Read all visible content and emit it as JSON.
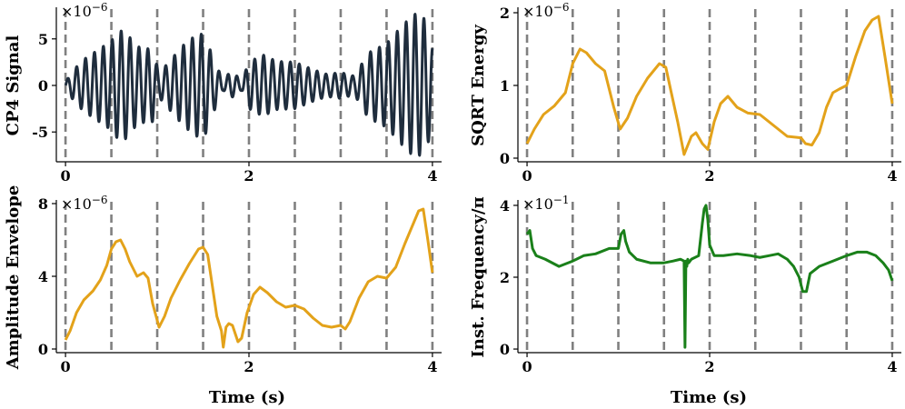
{
  "figure": {
    "shared_xlabel": "Time (s)"
  },
  "chart_data": [
    {
      "type": "line",
      "id": "signal",
      "ylabel": "CP4 Signal",
      "multiplier": "×10",
      "exponent": "−6",
      "xlim": [
        -0.1,
        4.1
      ],
      "ylim": [
        -8.2,
        8.2
      ],
      "xticks": [
        0,
        2,
        4
      ],
      "yticks": [
        -5,
        0,
        5
      ],
      "ytick_labels": [
        "-5",
        "0",
        "5"
      ],
      "vlines": [
        0,
        0.5,
        1,
        1.5,
        2,
        2.5,
        3,
        3.5,
        4
      ],
      "series": [
        {
          "name": "CP4 Signal",
          "color": "#1f2d3d",
          "carrier_freq_hz": 10.3,
          "envelope_x": [
            0,
            0.1,
            0.2,
            0.35,
            0.5,
            0.58,
            0.65,
            0.78,
            0.85,
            0.95,
            1.02,
            1.15,
            1.3,
            1.45,
            1.52,
            1.6,
            1.72,
            1.78,
            1.85,
            1.92,
            2.0,
            2.15,
            2.3,
            2.5,
            2.7,
            2.85,
            3.0,
            3.15,
            3.3,
            3.5,
            3.65,
            3.8,
            3.9,
            3.98,
            4.0
          ],
          "envelope_y": [
            0.4,
            1.8,
            2.8,
            3.8,
            4.8,
            5.9,
            5.8,
            4.2,
            4.0,
            3.9,
            1.3,
            2.8,
            4.5,
            5.6,
            5.4,
            3.2,
            0.5,
            1.3,
            1.2,
            0.5,
            2.5,
            3.3,
            2.6,
            2.5,
            1.7,
            1.2,
            1.4,
            1.0,
            3.5,
            4.5,
            6.2,
            7.7,
            7.4,
            5.5,
            4.2
          ]
        }
      ]
    },
    {
      "type": "line",
      "id": "sqrt-energy",
      "ylabel": "SQRT Energy",
      "multiplier": "×10",
      "exponent": "−6",
      "xlim": [
        -0.1,
        4.1
      ],
      "ylim": [
        -0.05,
        2.05
      ],
      "xticks": [
        0,
        2,
        4
      ],
      "yticks": [
        0,
        1,
        2
      ],
      "ytick_labels": [
        "0",
        "1",
        "2"
      ],
      "vlines": [
        0,
        0.5,
        1,
        1.5,
        2,
        2.5,
        3,
        3.5,
        4
      ],
      "series": [
        {
          "name": "SQRT Energy",
          "color": "#e3a21a",
          "x": [
            0.0,
            0.08,
            0.18,
            0.3,
            0.42,
            0.5,
            0.58,
            0.65,
            0.75,
            0.85,
            0.95,
            1.02,
            1.1,
            1.2,
            1.32,
            1.45,
            1.52,
            1.58,
            1.65,
            1.72,
            1.8,
            1.85,
            1.92,
            1.98,
            2.05,
            2.12,
            2.2,
            2.3,
            2.42,
            2.55,
            2.7,
            2.85,
            3.0,
            3.05,
            3.12,
            3.2,
            3.28,
            3.35,
            3.42,
            3.5,
            3.6,
            3.7,
            3.78,
            3.85,
            3.92,
            4.0
          ],
          "y": [
            0.2,
            0.4,
            0.6,
            0.72,
            0.9,
            1.3,
            1.5,
            1.45,
            1.3,
            1.2,
            0.7,
            0.4,
            0.55,
            0.85,
            1.1,
            1.3,
            1.25,
            0.9,
            0.5,
            0.05,
            0.3,
            0.35,
            0.2,
            0.12,
            0.5,
            0.75,
            0.85,
            0.7,
            0.62,
            0.6,
            0.45,
            0.3,
            0.28,
            0.2,
            0.18,
            0.35,
            0.7,
            0.9,
            0.95,
            1.0,
            1.4,
            1.75,
            1.9,
            1.95,
            1.4,
            0.75
          ]
        }
      ]
    },
    {
      "type": "line",
      "id": "amplitude-envelope",
      "ylabel": "Amplitude Envelope",
      "multiplier": "×10",
      "exponent": "−6",
      "xlim": [
        -0.1,
        4.1
      ],
      "ylim": [
        -0.2,
        8.1
      ],
      "xticks": [
        0,
        2,
        4
      ],
      "yticks": [
        0,
        4,
        8
      ],
      "ytick_labels": [
        "0",
        "4",
        "8"
      ],
      "vlines": [
        0,
        0.5,
        1,
        1.5,
        2,
        2.5,
        3,
        3.5,
        4
      ],
      "series": [
        {
          "name": "Amplitude Envelope",
          "color": "#e3a21a",
          "x": [
            0.0,
            0.05,
            0.12,
            0.2,
            0.3,
            0.38,
            0.45,
            0.5,
            0.55,
            0.6,
            0.65,
            0.7,
            0.78,
            0.85,
            0.9,
            0.95,
            1.02,
            1.08,
            1.15,
            1.25,
            1.35,
            1.45,
            1.5,
            1.55,
            1.6,
            1.65,
            1.7,
            1.72,
            1.75,
            1.78,
            1.82,
            1.88,
            1.92,
            1.98,
            2.05,
            2.12,
            2.2,
            2.3,
            2.4,
            2.5,
            2.6,
            2.7,
            2.8,
            2.9,
            3.0,
            3.05,
            3.1,
            3.2,
            3.3,
            3.4,
            3.5,
            3.6,
            3.7,
            3.8,
            3.85,
            3.9,
            3.95,
            4.0
          ],
          "y": [
            0.5,
            1.0,
            2.0,
            2.7,
            3.2,
            3.8,
            4.6,
            5.5,
            5.9,
            6.0,
            5.5,
            4.8,
            4.0,
            4.2,
            3.9,
            2.5,
            1.2,
            1.8,
            2.8,
            3.8,
            4.7,
            5.5,
            5.6,
            5.2,
            3.5,
            1.8,
            1.0,
            0.1,
            1.2,
            1.4,
            1.3,
            0.4,
            0.6,
            2.0,
            3.0,
            3.4,
            3.1,
            2.6,
            2.3,
            2.4,
            2.2,
            1.7,
            1.3,
            1.2,
            1.3,
            1.1,
            1.5,
            2.8,
            3.7,
            4.0,
            3.9,
            4.5,
            5.8,
            7.0,
            7.6,
            7.7,
            6.0,
            4.2
          ]
        }
      ]
    },
    {
      "type": "line",
      "id": "inst-frequency",
      "ylabel": "Inst. Frequency/π",
      "multiplier": "×10",
      "exponent": "−1",
      "xlim": [
        -0.1,
        4.1
      ],
      "ylim": [
        -0.1,
        4.1
      ],
      "xticks": [
        0,
        2,
        4
      ],
      "yticks": [
        0,
        2,
        4
      ],
      "ytick_labels": [
        "0",
        "2",
        "4"
      ],
      "vlines": [
        0,
        0.5,
        1,
        1.5,
        2,
        2.5,
        3,
        3.5,
        4
      ],
      "series": [
        {
          "name": "Inst. Frequency/π",
          "color": "#1a801a",
          "x": [
            0.0,
            0.03,
            0.06,
            0.1,
            0.2,
            0.35,
            0.5,
            0.62,
            0.75,
            0.9,
            1.0,
            1.03,
            1.06,
            1.08,
            1.12,
            1.2,
            1.35,
            1.5,
            1.6,
            1.68,
            1.72,
            1.73,
            1.74,
            1.75,
            1.76,
            1.77,
            1.8,
            1.88,
            1.92,
            1.94,
            1.96,
            1.98,
            2.0,
            2.05,
            2.15,
            2.3,
            2.45,
            2.55,
            2.65,
            2.75,
            2.85,
            2.92,
            2.98,
            3.02,
            3.06,
            3.1,
            3.2,
            3.35,
            3.5,
            3.62,
            3.72,
            3.82,
            3.9,
            3.96,
            4.0
          ],
          "y": [
            3.2,
            3.3,
            2.8,
            2.6,
            2.5,
            2.3,
            2.45,
            2.6,
            2.65,
            2.8,
            2.8,
            3.2,
            3.3,
            3.0,
            2.7,
            2.5,
            2.4,
            2.4,
            2.45,
            2.5,
            2.45,
            0.05,
            2.45,
            2.3,
            2.5,
            2.4,
            2.5,
            2.6,
            3.5,
            3.9,
            4.0,
            3.6,
            2.9,
            2.6,
            2.6,
            2.65,
            2.6,
            2.55,
            2.6,
            2.65,
            2.5,
            2.3,
            2.0,
            1.6,
            1.6,
            2.1,
            2.3,
            2.45,
            2.6,
            2.7,
            2.7,
            2.6,
            2.4,
            2.2,
            1.9
          ]
        }
      ]
    }
  ]
}
